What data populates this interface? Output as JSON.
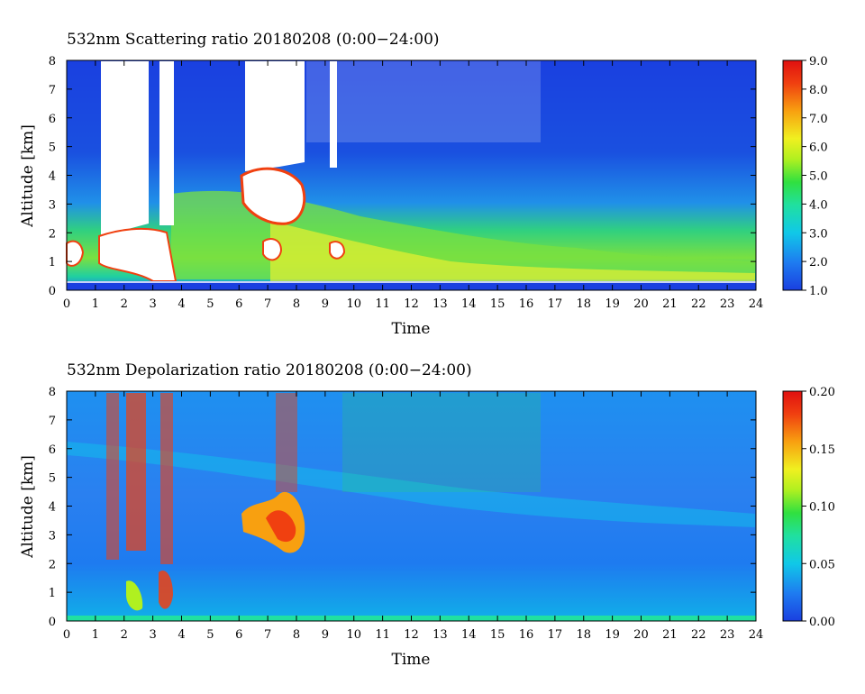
{
  "chart_data": [
    {
      "type": "heatmap",
      "title": "532nm Scattering ratio  20180208 (0:00−24:00)",
      "xlabel": "Time",
      "ylabel": "Altitude [km]",
      "xlim": [
        0,
        24
      ],
      "ylim": [
        0,
        8
      ],
      "x_ticks": [
        "0",
        "1",
        "2",
        "3",
        "4",
        "5",
        "6",
        "7",
        "8",
        "9",
        "10",
        "11",
        "12",
        "13",
        "14",
        "15",
        "16",
        "17",
        "18",
        "19",
        "20",
        "21",
        "22",
        "23",
        "24"
      ],
      "y_ticks": [
        "0",
        "1",
        "2",
        "3",
        "4",
        "5",
        "6",
        "7",
        "8"
      ],
      "colorbar": {
        "range": [
          1.0,
          9.0
        ],
        "tick_labels": [
          "1.0",
          "2.0",
          "3.0",
          "4.0",
          "5.0",
          "6.0",
          "7.0",
          "8.0",
          "9.0"
        ],
        "colors": [
          "#1a3fe0",
          "#1e7bf0",
          "#10c8e8",
          "#20e0a0",
          "#30e040",
          "#b0f020",
          "#f0f020",
          "#f8a010",
          "#f04010",
          "#e01010"
        ]
      },
      "features": [
        {
          "label": "dense aerosol/cloud layer, ratio > 9 (white)",
          "time_range": [
            1.2,
            3.7
          ],
          "altitude_range": [
            0.3,
            8.0
          ]
        },
        {
          "label": "cloud, ratio > 9 (white)",
          "time_range": [
            6.1,
            8.3
          ],
          "altitude_range": [
            3.0,
            8.0
          ]
        },
        {
          "label": "boundary layer aerosol (green-yellow)",
          "time_range": [
            3.8,
            23.8
          ],
          "altitude_range": [
            0.3,
            3.5
          ]
        }
      ]
    },
    {
      "type": "heatmap",
      "title": "532nm Depolarization ratio  20180208 (0:00−24:00)",
      "xlabel": "Time",
      "ylabel": "Altitude [km]",
      "xlim": [
        0,
        24
      ],
      "ylim": [
        0,
        8
      ],
      "x_ticks": [
        "0",
        "1",
        "2",
        "3",
        "4",
        "5",
        "6",
        "7",
        "8",
        "9",
        "10",
        "11",
        "12",
        "13",
        "14",
        "15",
        "16",
        "17",
        "18",
        "19",
        "20",
        "21",
        "22",
        "23",
        "24"
      ],
      "y_ticks": [
        "0",
        "1",
        "2",
        "3",
        "4",
        "5",
        "6",
        "7",
        "8"
      ],
      "colorbar": {
        "range": [
          0.0,
          0.2
        ],
        "tick_labels": [
          "0.00",
          "0.05",
          "0.10",
          "0.15",
          "0.20"
        ],
        "colors": [
          "#1a3fe0",
          "#1e7bf0",
          "#10c8e8",
          "#20e0a0",
          "#30e040",
          "#b0f020",
          "#f0f020",
          "#f8a010",
          "#f04010",
          "#e01010"
        ]
      },
      "features": [
        {
          "label": "high depolarization streaks",
          "time_range": [
            1.3,
            3.8
          ],
          "altitude_range": [
            0.3,
            8.0
          ]
        },
        {
          "label": "depolarizing cloud",
          "time_range": [
            6.1,
            8.1
          ],
          "altitude_range": [
            2.2,
            4.6
          ]
        }
      ]
    }
  ]
}
